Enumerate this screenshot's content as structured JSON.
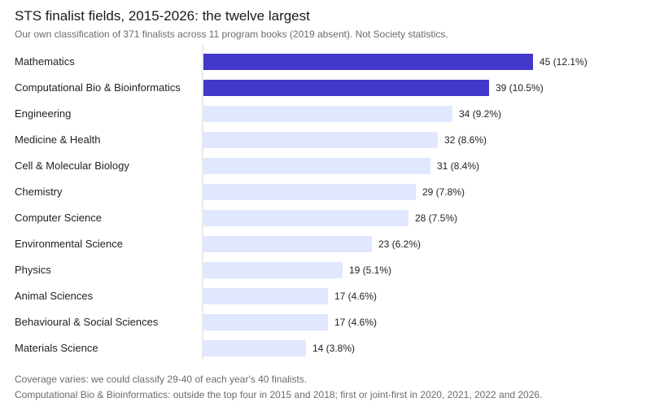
{
  "title": "STS finalist fields, 2015-2026: the twelve largest",
  "subtitle": "Our own classification of 371 finalists across 11 program books (2019 absent). Not Society statistics.",
  "footnotes": [
    "Coverage varies: we could classify 29-40 of each year's 40 finalists.",
    "Computational Bio & Bioinformatics: outside the top four in 2015 and 2018; first or joint-first in 2020, 2021, 2022 and 2026."
  ],
  "colors": {
    "highlight": "#4338ca",
    "base": "#e0e7ff",
    "axis": "#d4d4d4"
  },
  "chart_data": {
    "type": "bar",
    "orientation": "horizontal",
    "categories": [
      "Mathematics",
      "Computational Bio & Bioinformatics",
      "Engineering",
      "Medicine & Health",
      "Cell & Molecular Biology",
      "Chemistry",
      "Computer Science",
      "Environmental Science",
      "Physics",
      "Animal Sciences",
      "Behavioural & Social Sciences",
      "Materials Science"
    ],
    "values": [
      45,
      39,
      34,
      32,
      31,
      29,
      28,
      23,
      19,
      17,
      17,
      14
    ],
    "value_labels": [
      "45 (12.1%)",
      "39 (10.5%)",
      "34 (9.2%)",
      "32 (8.6%)",
      "31 (8.4%)",
      "29 (7.8%)",
      "28 (7.5%)",
      "23 (6.2%)",
      "19 (5.1%)",
      "17 (4.6%)",
      "17 (4.6%)",
      "14 (3.8%)"
    ],
    "highlighted": [
      true,
      true,
      false,
      false,
      false,
      false,
      false,
      false,
      false,
      false,
      false,
      false
    ],
    "xlim": [
      0,
      45
    ],
    "title": "STS finalist fields, 2015-2026: the twelve largest",
    "xlabel": "",
    "ylabel": "",
    "grid": false
  }
}
